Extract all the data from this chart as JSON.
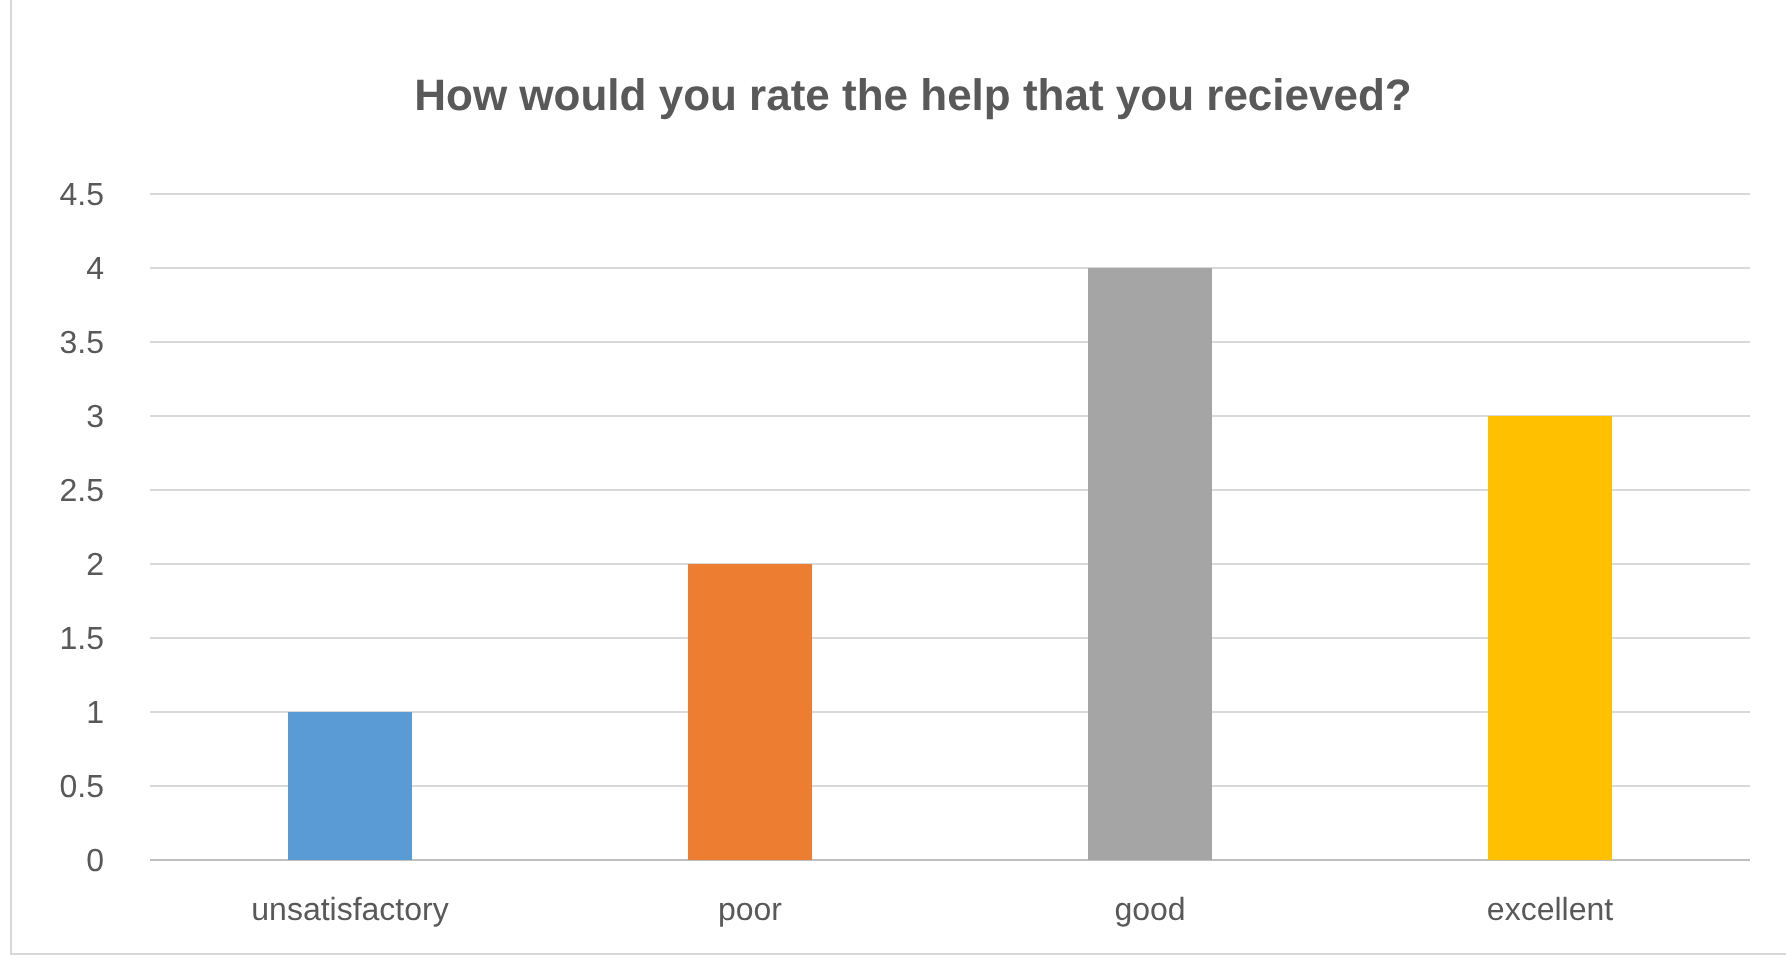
{
  "chart_data": {
    "type": "bar",
    "title": "How would you rate the help that you recieved?",
    "categories": [
      "unsatisfactory",
      "poor",
      "good",
      "excellent"
    ],
    "values": [
      1,
      2,
      4,
      3
    ],
    "colors": [
      "#5b9bd5",
      "#ed7d31",
      "#a5a5a5",
      "#ffc000"
    ],
    "ylim": [
      0,
      4.5
    ],
    "yticks": [
      0,
      0.5,
      1,
      1.5,
      2,
      2.5,
      3,
      3.5,
      4,
      4.5
    ],
    "grid": "y"
  }
}
